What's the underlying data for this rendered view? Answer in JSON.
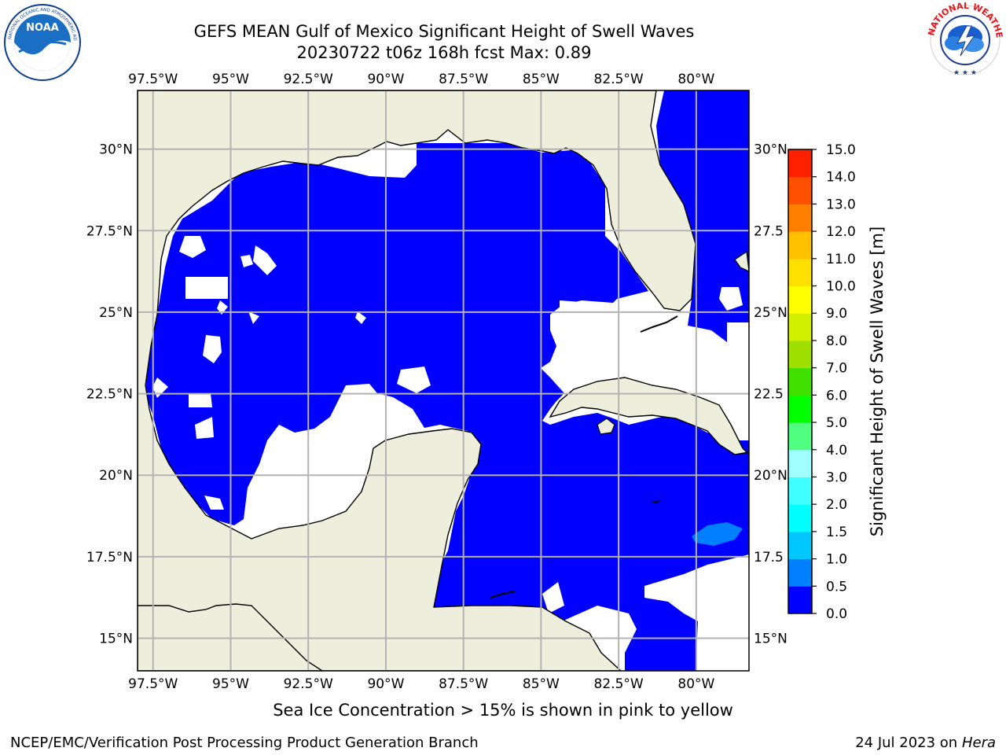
{
  "header": {
    "title_line1": "GEFS MEAN Gulf of Mexico Significant Height of Swell Waves",
    "title_line2": "20230722 t06z 168h fcst   Max: 0.89"
  },
  "logos": {
    "noaa": {
      "text": "NOAA",
      "ring_text": "NATIONAL OCEANIC AND ATMOSPHERIC ADMINISTRATION · U.S. DEPARTMENT OF COMMERCE"
    },
    "nws": {
      "ring_text": "NATIONAL WEATHER SERVICE"
    }
  },
  "map": {
    "lon_range": [
      -98.0,
      -78.3
    ],
    "lat_range": [
      14.0,
      31.8
    ],
    "lon_ticks": [
      "97.5°W",
      "95°W",
      "92.5°W",
      "90°W",
      "87.5°W",
      "85°W",
      "82.5°W",
      "80°W"
    ],
    "lat_ticks": [
      "30°N",
      "27.5°N",
      "25°N",
      "22.5°N",
      "20°N",
      "17.5°N",
      "15°N"
    ],
    "right_lat_ticks": [
      "30°N",
      "27.5",
      "25°N",
      "22.5",
      "20°N",
      "17.5",
      "15°N"
    ],
    "gridlines": true,
    "colors": {
      "land": "#eeeedd",
      "grid": "#b3b3b3",
      "coast": "#000000"
    }
  },
  "colorbar": {
    "label": "Significant Height of Swell Waves [m]",
    "ticks": [
      "0.0",
      "0.5",
      "1.0",
      "1.5",
      "2.0",
      "3.0",
      "4.0",
      "5.0",
      "6.0",
      "7.0",
      "8.0",
      "9.0",
      "10.0",
      "11.0",
      "12.0",
      "13.0",
      "14.0",
      "15.0"
    ],
    "colors": [
      "#0000ff",
      "#0080ff",
      "#00c8ff",
      "#00ffff",
      "#40ffff",
      "#a0ffff",
      "#50ff80",
      "#00ff00",
      "#40e000",
      "#a0e000",
      "#d0f000",
      "#ffff00",
      "#ffe000",
      "#ffc000",
      "#ff8000",
      "#ff5000",
      "#ff2000",
      "#ff0000"
    ]
  },
  "footer": {
    "note": "Sea Ice Concentration > 15% is shown in pink to yellow",
    "credit": "NCEP/EMC/Verification Post Processing Product Generation Branch",
    "date": "24 Jul 2023 on",
    "host": "Hera"
  }
}
